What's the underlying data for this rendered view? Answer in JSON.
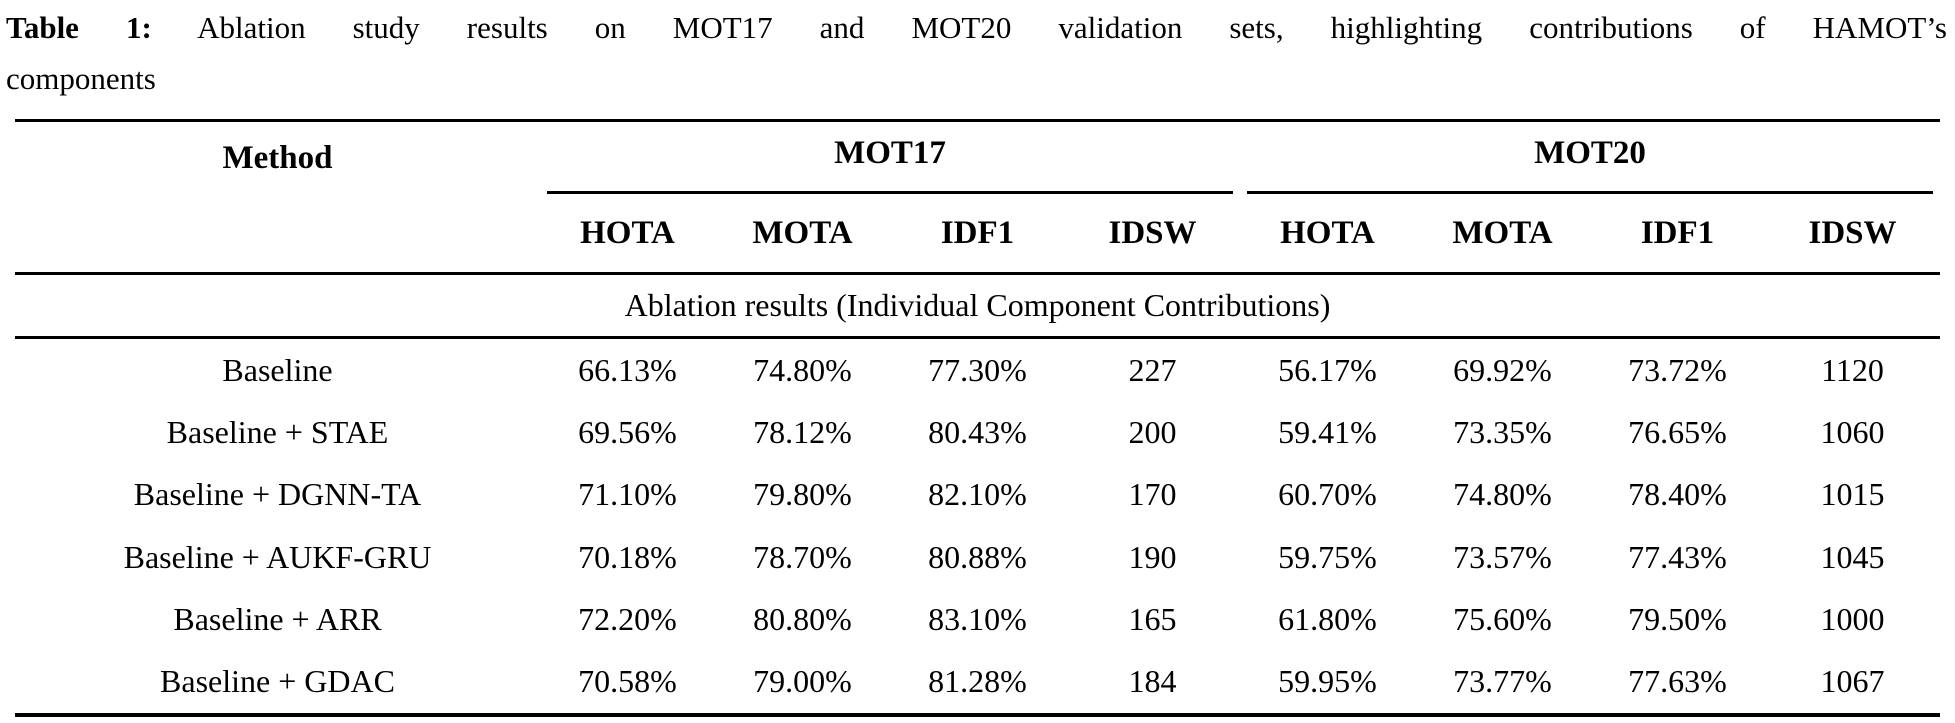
{
  "caption": {
    "label": "Table 1:",
    "line1": "Ablation study results on MOT17 and MOT20 validation sets, highlighting contributions of HAMOT’s",
    "line2": "components"
  },
  "table": {
    "method_header": "Method",
    "groups": [
      "MOT17",
      "MOT20"
    ],
    "metrics": [
      "HOTA",
      "MOTA",
      "IDF1",
      "IDSW"
    ],
    "section_header": "Ablation results (Individual Component Contributions)",
    "rows": [
      {
        "method": "Baseline",
        "mot17": [
          "66.13%",
          "74.80%",
          "77.30%",
          "227"
        ],
        "mot20": [
          "56.17%",
          "69.92%",
          "73.72%",
          "1120"
        ]
      },
      {
        "method": "Baseline + STAE",
        "mot17": [
          "69.56%",
          "78.12%",
          "80.43%",
          "200"
        ],
        "mot20": [
          "59.41%",
          "73.35%",
          "76.65%",
          "1060"
        ]
      },
      {
        "method": "Baseline + DGNN-TA",
        "mot17": [
          "71.10%",
          "79.80%",
          "82.10%",
          "170"
        ],
        "mot20": [
          "60.70%",
          "74.80%",
          "78.40%",
          "1015"
        ]
      },
      {
        "method": "Baseline + AUKF-GRU",
        "mot17": [
          "70.18%",
          "78.70%",
          "80.88%",
          "190"
        ],
        "mot20": [
          "59.75%",
          "73.57%",
          "77.43%",
          "1045"
        ]
      },
      {
        "method": "Baseline + ARR",
        "mot17": [
          "72.20%",
          "80.80%",
          "83.10%",
          "165"
        ],
        "mot20": [
          "61.80%",
          "75.60%",
          "79.50%",
          "1000"
        ]
      },
      {
        "method": "Baseline + GDAC",
        "mot17": [
          "70.58%",
          "79.00%",
          "81.28%",
          "184"
        ],
        "mot20": [
          "59.95%",
          "73.77%",
          "77.63%",
          "1067"
        ]
      }
    ],
    "text_color": "#000000",
    "background_color": "#ffffff"
  }
}
